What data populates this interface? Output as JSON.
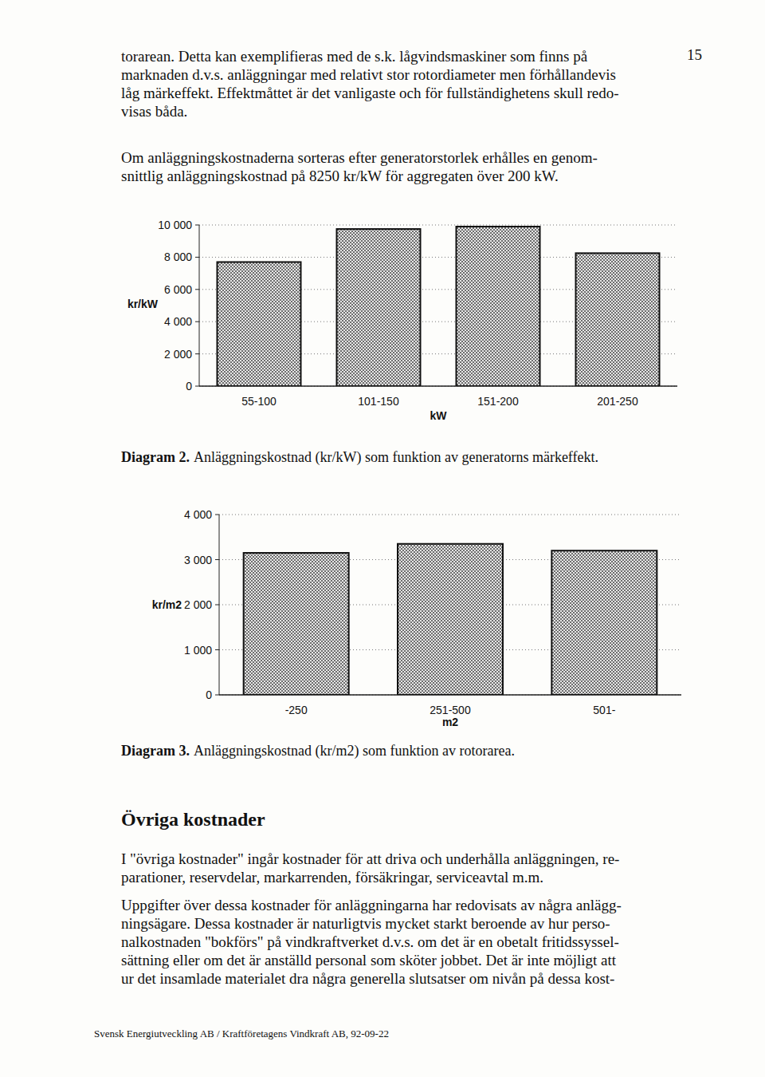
{
  "page_number": "15",
  "intro": [
    "torarean. Detta kan exemplifieras med de s.k. lågvindsmaskiner som finns på",
    "marknaden d.v.s. anläggningar med relativt stor rotordiameter men förhållandevis",
    "låg märkeffekt. Effektmåttet är det vanligaste och för fullständighetens skull redo-",
    "visas båda."
  ],
  "paragraph": [
    "Om anläggningskostnaderna sorteras efter generatorstorlek erhålles en genom-",
    "snittlig anläggningskostnad på 8250 kr/kW för aggregaten över 200 kW."
  ],
  "chart_data": [
    {
      "type": "bar",
      "y_label": "kr/kW",
      "x_label": "kW",
      "categories": [
        "55-100",
        "101-150",
        "151-200",
        "201-250"
      ],
      "values": [
        7700,
        9750,
        9900,
        8250
      ],
      "color": "#6e6e6e",
      "ylim": [
        0,
        10000
      ],
      "yticks": [
        0,
        {
          "value": 2000,
          "label": "2 000"
        },
        {
          "value": 4000,
          "label": "4 000"
        },
        {
          "value": 6000,
          "label": "6 000"
        },
        {
          "value": 8000,
          "label": "8 000"
        },
        {
          "value": 10000,
          "label": "10 000"
        }
      ],
      "grid": true
    },
    {
      "type": "bar",
      "y_label": "kr/m2",
      "x_label": "m2",
      "categories": [
        "-250",
        "251-500",
        "501-"
      ],
      "values": [
        3150,
        3350,
        3200
      ],
      "color": "#6e6e6e",
      "ylim": [
        0,
        4000
      ],
      "yticks": [
        0,
        {
          "value": 1000,
          "label": "1 000"
        },
        {
          "value": 2000,
          "label": "2 000"
        },
        {
          "value": 3000,
          "label": "3 000"
        },
        {
          "value": 4000,
          "label": "4 000"
        }
      ],
      "grid": true
    }
  ],
  "captions": [
    {
      "label": "Diagram 2.",
      "text": "Anläggningskostnad (kr/kW) som funktion av generatorns märkeffekt."
    },
    {
      "label": "Diagram 3.",
      "text": "Anläggningskostnad (kr/m2) som funktion av rotorarea."
    }
  ],
  "heading": "Övriga kostnader",
  "body": [
    [
      "I \"övriga kostnader\" ingår kostnader för att driva och underhålla anläggningen, re-",
      "parationer, reservdelar, markarrenden, försäkringar, serviceavtal m.m."
    ],
    [
      "Uppgifter över dessa kostnader för anläggningarna har redovisats av några anlägg-",
      "ningsägare. Dessa kostnader är naturligtvis mycket starkt beroende av hur perso-",
      "nalkostnaden \"bokförs\" på vindkraftverket d.v.s. om det är en obetalt fritidssyssel-",
      "sättning eller om det är anställd personal som sköter jobbet. Det är inte möjligt att",
      "ur det insamlade materialet dra några generella slutsatser om nivån på dessa kost-"
    ]
  ],
  "footer": "Svensk Energiutveckling AB / Kraftföretagens Vindkraft AB, 92-09-22"
}
